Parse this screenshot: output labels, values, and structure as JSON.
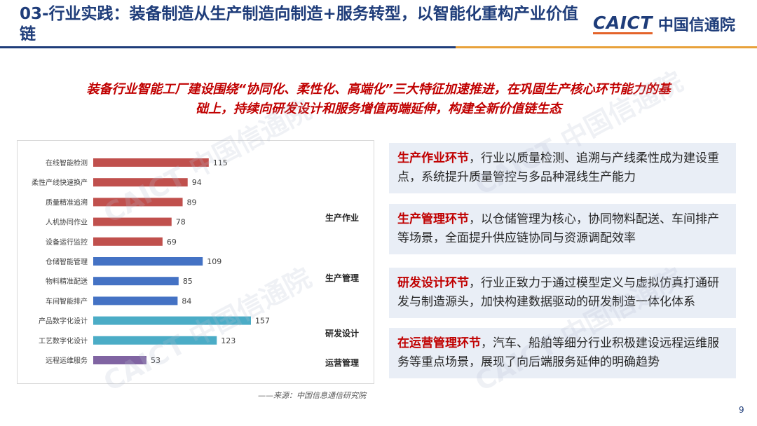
{
  "header": {
    "title": "03-行业实践：装备制造从生产制造向制造+服务转型，以智能化重构产业价值链",
    "logo_en": "CAICT",
    "logo_cn": "中国信通院"
  },
  "subtitle": {
    "line1": "装备行业智能工厂建设围绕“协同化、柔性化、高端化”三大特征加速推进，在巩固生产核心环节能力的基",
    "line2": "础上，持续向研发设计和服务增值两端延伸，构建全新价值链生态"
  },
  "chart_data": {
    "type": "bar",
    "orientation": "horizontal",
    "categories": [
      "在线智能检测",
      "柔性产线快速换产",
      "质量精准追溯",
      "人机协同作业",
      "设备运行监控",
      "仓储智能管理",
      "物料精准配送",
      "车间智能排产",
      "产品数字化设计",
      "工艺数字化设计",
      "远程运维服务"
    ],
    "values": [
      115,
      94,
      89,
      78,
      69,
      109,
      85,
      84,
      157,
      123,
      53
    ],
    "groups": [
      {
        "name": "生产作业",
        "categories": [
          "在线智能检测",
          "柔性产线快速换产",
          "质量精准追溯",
          "人机协同作业",
          "设备运行监控"
        ],
        "color": "#c0504d"
      },
      {
        "name": "生产管理",
        "categories": [
          "仓储智能管理",
          "物料精准配送",
          "车间智能排产"
        ],
        "color": "#4472c4"
      },
      {
        "name": "研发设计",
        "categories": [
          "产品数字化设计",
          "工艺数字化设计"
        ],
        "color": "#4bacc6"
      },
      {
        "name": "运营管理",
        "categories": [
          "远程运维服务"
        ],
        "color": "#8064a2"
      }
    ],
    "xlim": [
      0,
      180
    ],
    "grid": false,
    "source": "——来源：中国信息通信研究院"
  },
  "cards": [
    {
      "highlight": "生产作业环节",
      "text": "，行业以质量检测、追溯与产线柔性成为建设重点，系统提升质量管控与多品种混线生产能力"
    },
    {
      "highlight": "生产管理环节",
      "text": "，以仓储管理为核心，协同物料配送、车间排产等场景，全面提升供应链协同与资源调配效率"
    },
    {
      "highlight": "研发设计环节",
      "text": "，行业正致力于通过模型定义与虚拟仿真打通研发与制造源头，加快构建数据驱动的研发制造一体化体系"
    },
    {
      "highlight": "在运营管理环节",
      "text": "，汽车、船舶等细分行业积极建设远程运维服务等重点场景，展现了向后端服务延伸的明确趋势"
    }
  ],
  "page_number": "9",
  "watermark_text": "CAICT 中国信通院"
}
